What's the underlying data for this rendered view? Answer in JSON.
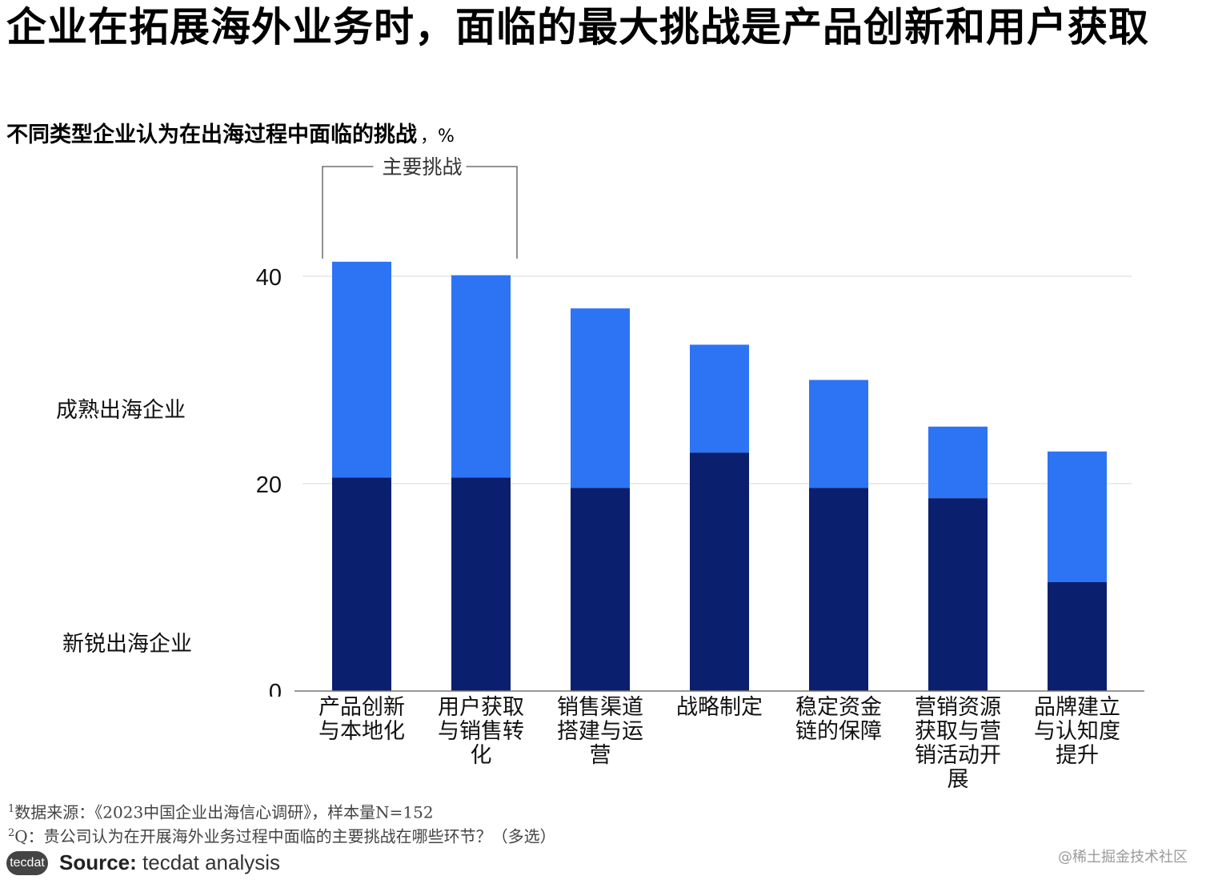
{
  "title": "企业在拓展海外业务时，面临的最大挑战是产品创新和用户获取",
  "subtitle": "不同类型企业认为在出海过程中面临的挑战",
  "subtitle_unit": "，%",
  "bracket_label": "主要挑战",
  "chart_data": {
    "type": "bar",
    "stacked": true,
    "categories": [
      "产品创新与本地化",
      "用户获取与销售转化",
      "销售渠道搭建与运营",
      "战略制定",
      "稳定资金链的保障",
      "营销资源获取与营销活动开展",
      "品牌建立与认知度提升"
    ],
    "series": [
      {
        "name": "新锐出海企业",
        "color": "#0a1f6e",
        "values": [
          20.6,
          20.6,
          19.6,
          23.0,
          19.6,
          18.6,
          10.5
        ]
      },
      {
        "name": "成熟出海企业",
        "color": "#2d74f5",
        "values": [
          20.8,
          19.5,
          17.3,
          10.4,
          10.4,
          6.9,
          12.6
        ]
      }
    ],
    "y_ticks": [
      0,
      20,
      40
    ],
    "ylim": [
      0,
      42
    ],
    "grid": true
  },
  "notes": {
    "note1_marker": "1",
    "note1": "数据来源：《2023中国企业出海信心调研》，样本量N=152",
    "note2_marker": "2",
    "note2": "Q：贵公司认为在开展海外业务过程中面临的主要挑战在哪些环节？（多选）"
  },
  "footer": {
    "logo_text": "tecdat",
    "source_label": "Source:",
    "source_text": "tecdat analysis"
  },
  "watermark": "@稀土掘金技术社区"
}
